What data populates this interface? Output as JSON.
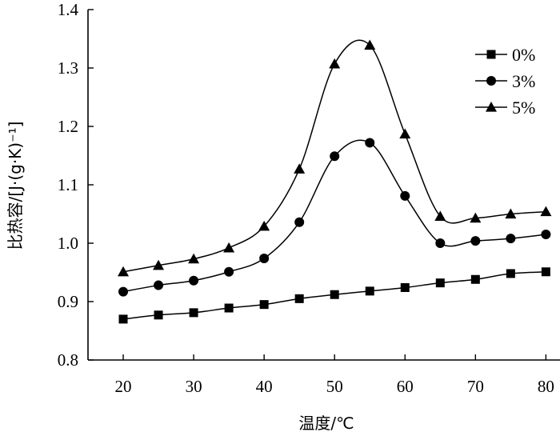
{
  "chart_data": {
    "type": "line",
    "title": "",
    "xlabel": "温度/℃",
    "ylabel": "比热容/[J·(g·K)⁻¹]",
    "x": [
      20,
      25,
      30,
      35,
      40,
      45,
      50,
      55,
      60,
      65,
      70,
      75,
      80
    ],
    "xticks": [
      "20",
      "30",
      "40",
      "50",
      "60",
      "70",
      "80"
    ],
    "xtick_values": [
      20,
      30,
      40,
      50,
      60,
      70,
      80
    ],
    "yticks": [
      "0.8",
      "0.9",
      "1.0",
      "1.1",
      "1.2",
      "1.3",
      "1.4"
    ],
    "ytick_values": [
      0.8,
      0.9,
      1.0,
      1.1,
      1.2,
      1.3,
      1.4
    ],
    "xlim": [
      15,
      82
    ],
    "ylim": [
      0.8,
      1.4
    ],
    "legend_position": "top-right",
    "series": [
      {
        "name": "0%",
        "marker": "square",
        "values": [
          0.87,
          0.877,
          0.881,
          0.889,
          0.895,
          0.905,
          0.912,
          0.918,
          0.924,
          0.932,
          0.938,
          0.948,
          0.951
        ]
      },
      {
        "name": "3%",
        "marker": "circle",
        "values": [
          0.917,
          0.928,
          0.936,
          0.951,
          0.974,
          1.036,
          1.149,
          1.172,
          1.081,
          1.0,
          1.004,
          1.008,
          1.015
        ]
      },
      {
        "name": "5%",
        "marker": "triangle",
        "values": [
          0.951,
          0.962,
          0.973,
          0.992,
          1.029,
          1.127,
          1.307,
          1.339,
          1.187,
          1.046,
          1.043,
          1.05,
          1.054
        ]
      }
    ]
  }
}
